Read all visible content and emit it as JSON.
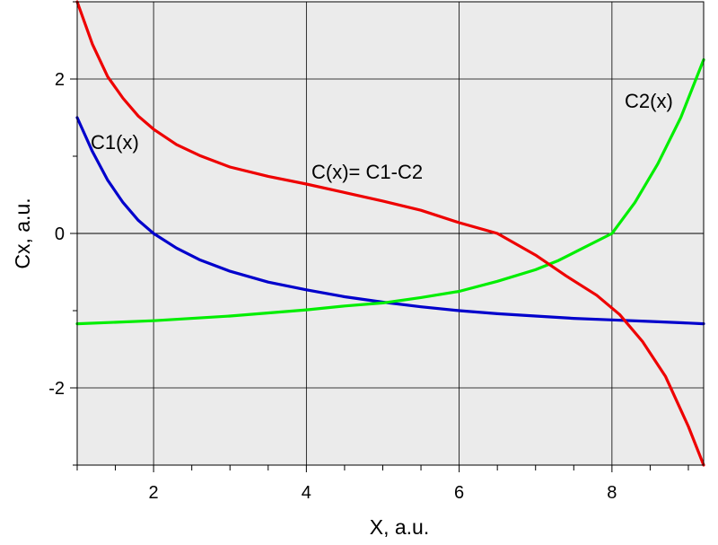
{
  "chart_data": {
    "type": "line",
    "xlabel": "X, a.u.",
    "ylabel": "Cx, a.u.",
    "xlim": [
      1.0,
      9.2
    ],
    "ylim": [
      -3.0,
      3.0
    ],
    "x_ticks": [
      2,
      4,
      6,
      8
    ],
    "x_tick_labels": [
      "2",
      "4",
      "6",
      "8"
    ],
    "y_ticks": [
      2,
      0,
      -2
    ],
    "y_tick_labels": [
      "2",
      "0",
      "-2"
    ],
    "grid": true,
    "background": "#ebebeb",
    "zero_line": true,
    "series": [
      {
        "name": "C1(x)",
        "color": "#0000cc",
        "x": [
          1.0,
          1.2,
          1.4,
          1.6,
          1.8,
          2.0,
          2.3,
          2.6,
          3.0,
          3.5,
          4.0,
          4.5,
          5.0,
          5.5,
          6.0,
          6.5,
          7.0,
          7.5,
          8.0,
          8.5,
          9.0,
          9.2
        ],
        "y": [
          1.5,
          1.06,
          0.69,
          0.4,
          0.17,
          0.0,
          -0.19,
          -0.34,
          -0.49,
          -0.63,
          -0.73,
          -0.82,
          -0.89,
          -0.95,
          -1.0,
          -1.04,
          -1.07,
          -1.1,
          -1.12,
          -1.14,
          -1.16,
          -1.17
        ]
      },
      {
        "name": "C2(x)",
        "color": "#00ee00",
        "x": [
          1.0,
          2.0,
          3.0,
          4.0,
          4.5,
          5.0,
          5.5,
          6.0,
          6.5,
          7.0,
          7.3,
          7.6,
          8.0,
          8.3,
          8.6,
          8.9,
          9.2
        ],
        "y": [
          -1.17,
          -1.13,
          -1.07,
          -0.99,
          -0.94,
          -0.9,
          -0.83,
          -0.75,
          -0.62,
          -0.47,
          -0.35,
          -0.2,
          0.0,
          0.4,
          0.9,
          1.5,
          2.25
        ]
      },
      {
        "name": "C(x)= C1-C2",
        "color": "#ee0000",
        "x": [
          1.0,
          1.2,
          1.4,
          1.6,
          1.8,
          2.0,
          2.3,
          2.6,
          3.0,
          3.5,
          4.0,
          4.5,
          5.0,
          5.5,
          6.0,
          6.5,
          7.0,
          7.4,
          7.8,
          8.1,
          8.4,
          8.7,
          9.0,
          9.2
        ],
        "y": [
          3.0,
          2.45,
          2.03,
          1.75,
          1.52,
          1.35,
          1.15,
          1.01,
          0.86,
          0.74,
          0.64,
          0.53,
          0.42,
          0.3,
          0.14,
          0.0,
          -0.28,
          -0.55,
          -0.8,
          -1.05,
          -1.4,
          -1.85,
          -2.5,
          -3.0
        ]
      }
    ]
  }
}
